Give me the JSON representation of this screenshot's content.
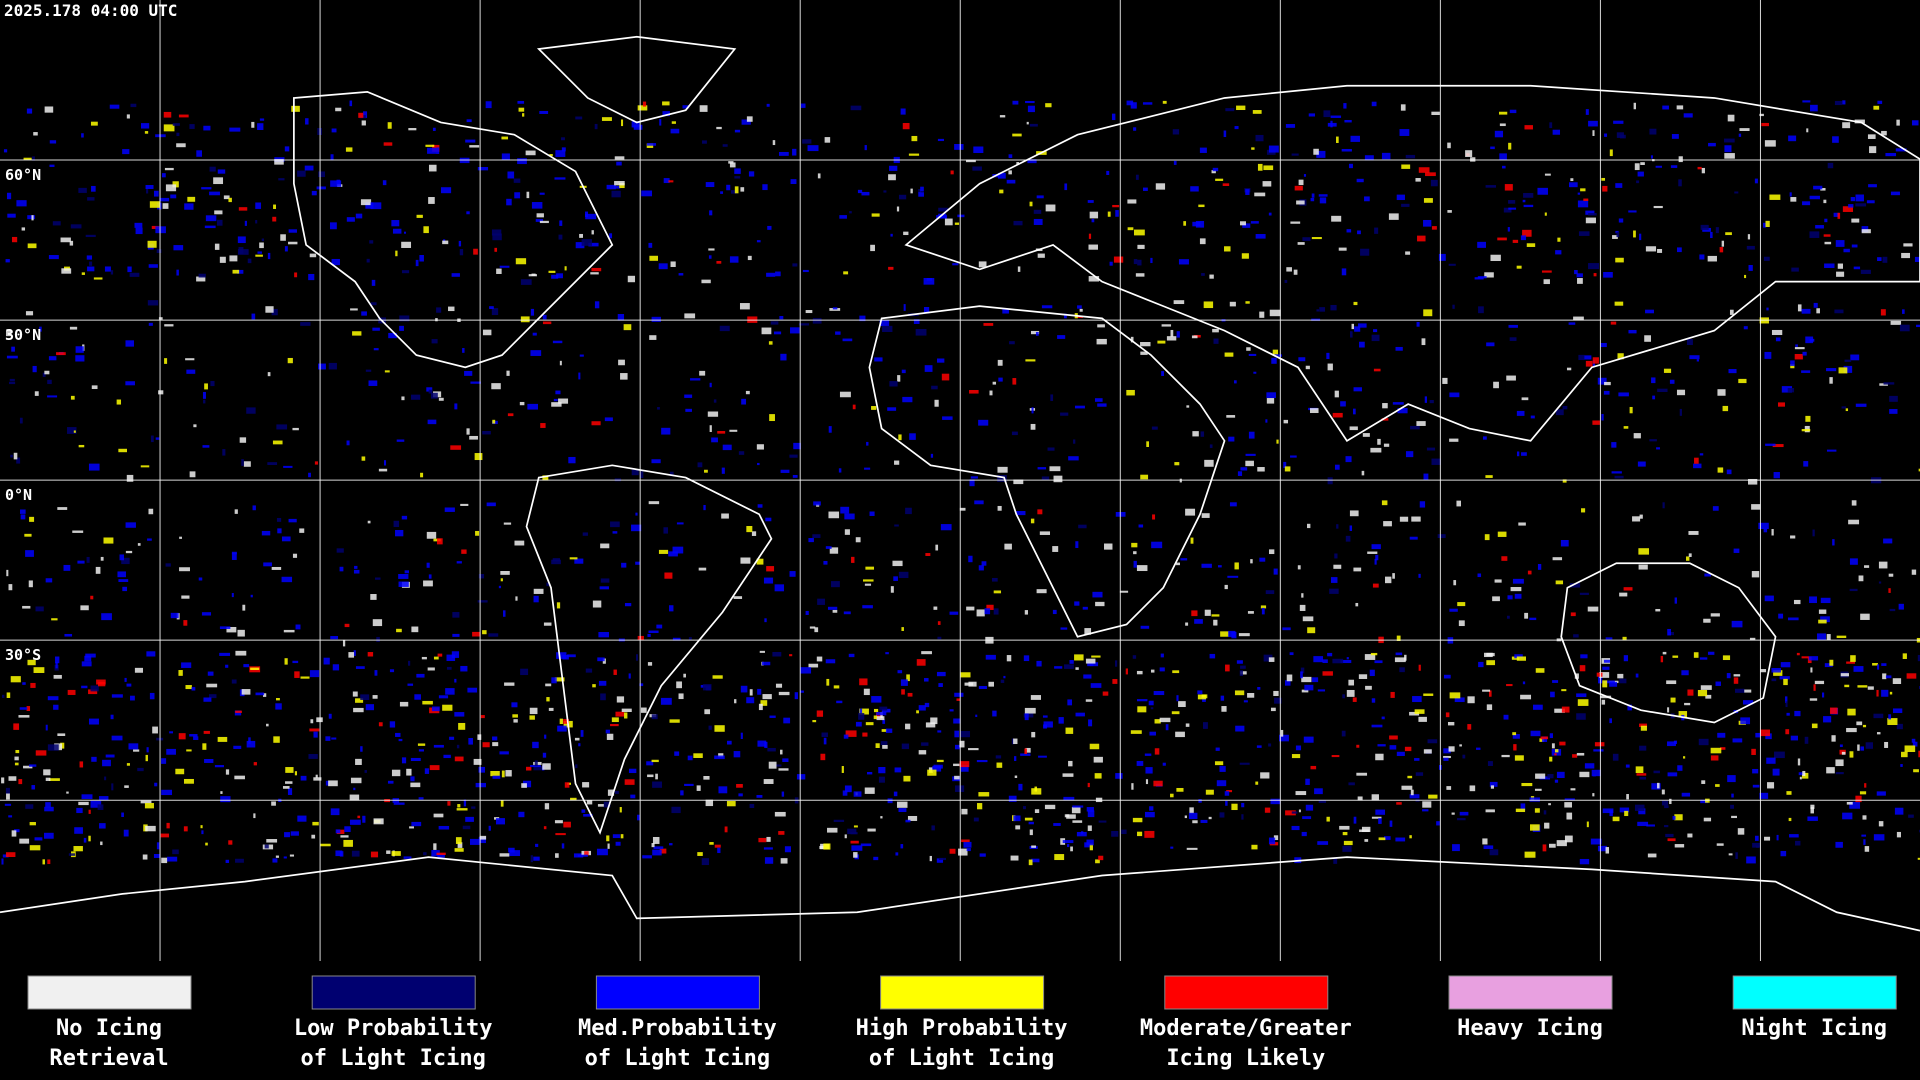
{
  "header": {
    "timestamp": "2025.178 04:00 UTC"
  },
  "map": {
    "lat_labels": [
      "60°N",
      "30°N",
      "0°N",
      "30°S"
    ]
  },
  "legend": [
    {
      "lines": [
        "No Icing",
        "Retrieval"
      ],
      "color": "#f0f0f0"
    },
    {
      "lines": [
        "Low Probability",
        "of Light Icing"
      ],
      "color": "#000070"
    },
    {
      "lines": [
        "Med.Probability",
        "of Light Icing"
      ],
      "color": "#0000ff"
    },
    {
      "lines": [
        "High Probability",
        "of Light Icing"
      ],
      "color": "#ffff00"
    },
    {
      "lines": [
        "Moderate/Greater",
        "Icing Likely"
      ],
      "color": "#ff0000"
    },
    {
      "lines": [
        "Heavy Icing"
      ],
      "color": "#e8a0e0"
    },
    {
      "lines": [
        "Night Icing"
      ],
      "color": "#00ffff"
    }
  ]
}
